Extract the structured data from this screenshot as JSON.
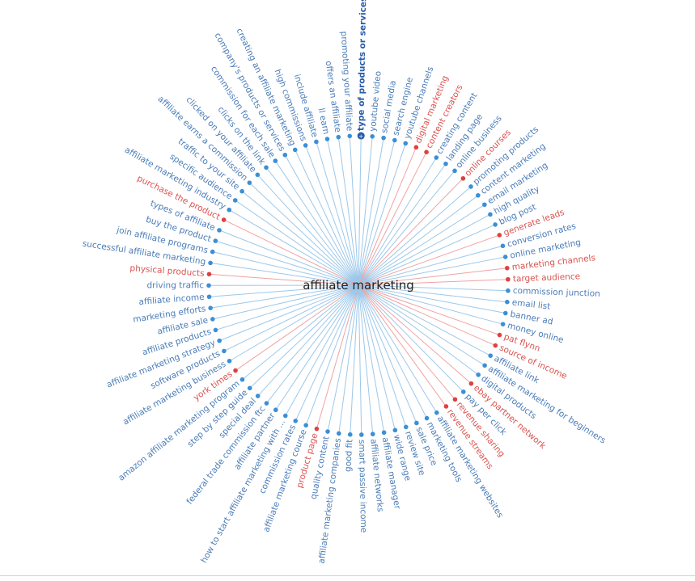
{
  "hub": {
    "label": "affiliate marketing"
  },
  "colors": {
    "blue": "#3b8fd6",
    "red": "#e04040",
    "spoke_blue": "#9cc8ea",
    "spoke_red": "#f0a3a3",
    "label_blue": "#4a7cb8",
    "label_red": "#d9534f",
    "selected": "#2a5da8"
  },
  "selected_marker": {
    "icon": "plus-icon",
    "symbol": "+"
  },
  "keywords": [
    {
      "label": "type of products or services",
      "color": "selected"
    },
    {
      "label": "youtube video",
      "color": "blue"
    },
    {
      "label": "social media",
      "color": "blue"
    },
    {
      "label": "search engine",
      "color": "blue"
    },
    {
      "label": "youtube channels",
      "color": "blue"
    },
    {
      "label": "digital marketing",
      "color": "red"
    },
    {
      "label": "content creators",
      "color": "red"
    },
    {
      "label": "creating content",
      "color": "blue"
    },
    {
      "label": "landing page",
      "color": "blue"
    },
    {
      "label": "online business",
      "color": "blue"
    },
    {
      "label": "online courses",
      "color": "red"
    },
    {
      "label": "promoting products",
      "color": "blue"
    },
    {
      "label": "content marketing",
      "color": "blue"
    },
    {
      "label": "email marketing",
      "color": "blue"
    },
    {
      "label": "high quality",
      "color": "blue"
    },
    {
      "label": "blog post",
      "color": "blue"
    },
    {
      "label": "generate leads",
      "color": "red"
    },
    {
      "label": "conversion rates",
      "color": "blue"
    },
    {
      "label": "online marketing",
      "color": "blue"
    },
    {
      "label": "marketing channels",
      "color": "red"
    },
    {
      "label": "target audience",
      "color": "red"
    },
    {
      "label": "commission junction",
      "color": "blue"
    },
    {
      "label": "email list",
      "color": "blue"
    },
    {
      "label": "banner ad",
      "color": "blue"
    },
    {
      "label": "money online",
      "color": "blue"
    },
    {
      "label": "pat flynn",
      "color": "red"
    },
    {
      "label": "source of income",
      "color": "red"
    },
    {
      "label": "affiliate link",
      "color": "blue"
    },
    {
      "label": "affiliate marketing for beginners",
      "color": "blue"
    },
    {
      "label": "digital products",
      "color": "blue"
    },
    {
      "label": "ebay partner network",
      "color": "red"
    },
    {
      "label": "pay per click",
      "color": "blue"
    },
    {
      "label": "revenue sharing",
      "color": "red"
    },
    {
      "label": "revenue streams",
      "color": "red"
    },
    {
      "label": "affiliate marketing websites",
      "color": "blue"
    },
    {
      "label": "marketing tools",
      "color": "blue"
    },
    {
      "label": "sale price",
      "color": "blue"
    },
    {
      "label": "review site",
      "color": "blue"
    },
    {
      "label": "wide range",
      "color": "blue"
    },
    {
      "label": "affiliate manager",
      "color": "blue"
    },
    {
      "label": "affiliate networks",
      "color": "blue"
    },
    {
      "label": "smart passive income",
      "color": "blue"
    },
    {
      "label": "good fit",
      "color": "blue"
    },
    {
      "label": "affiliate marketing companies",
      "color": "blue"
    },
    {
      "label": "quality content",
      "color": "blue"
    },
    {
      "label": "product page",
      "color": "red"
    },
    {
      "label": "affiliate marketing course",
      "color": "blue"
    },
    {
      "label": "commission rates",
      "color": "blue"
    },
    {
      "label": "how to start affiliate marketing with ...",
      "color": "blue"
    },
    {
      "label": "affiliate partner",
      "color": "blue"
    },
    {
      "label": "federal trade commission ftc",
      "color": "blue"
    },
    {
      "label": "special deal",
      "color": "blue"
    },
    {
      "label": "step by step guide",
      "color": "blue"
    },
    {
      "label": "amazon affiliate marketing program",
      "color": "blue"
    },
    {
      "label": "york times",
      "color": "red"
    },
    {
      "label": "affiliate marketing business",
      "color": "blue"
    },
    {
      "label": "software products",
      "color": "blue"
    },
    {
      "label": "affiliate marketing strategy",
      "color": "blue"
    },
    {
      "label": "affiliate products",
      "color": "blue"
    },
    {
      "label": "affiliate sale",
      "color": "blue"
    },
    {
      "label": "marketing efforts",
      "color": "blue"
    },
    {
      "label": "affiliate income",
      "color": "blue"
    },
    {
      "label": "driving traffic",
      "color": "blue"
    },
    {
      "label": "physical products",
      "color": "red"
    },
    {
      "label": "successful affiliate marketing",
      "color": "blue"
    },
    {
      "label": "join affiliate programs",
      "color": "blue"
    },
    {
      "label": "buy the product",
      "color": "blue"
    },
    {
      "label": "types of affiliate",
      "color": "blue"
    },
    {
      "label": "purchase the product",
      "color": "red"
    },
    {
      "label": "affiliate marketing industry",
      "color": "blue"
    },
    {
      "label": "specific audience",
      "color": "blue"
    },
    {
      "label": "traffic to your site",
      "color": "blue"
    },
    {
      "label": "affiliate earns a commission",
      "color": "blue"
    },
    {
      "label": "clicked on your affiliate",
      "color": "blue"
    },
    {
      "label": "clicks on the link",
      "color": "blue"
    },
    {
      "label": "commission for each sale",
      "color": "blue"
    },
    {
      "label": "company's products or services",
      "color": "blue"
    },
    {
      "label": "creating an affiliate marketing",
      "color": "blue"
    },
    {
      "label": "high commissions",
      "color": "blue"
    },
    {
      "label": "include affiliate",
      "color": "blue"
    },
    {
      "label": "ll earn",
      "color": "blue"
    },
    {
      "label": "offers an affiliate",
      "color": "blue"
    },
    {
      "label": "promoting your affiliate",
      "color": "blue"
    }
  ]
}
